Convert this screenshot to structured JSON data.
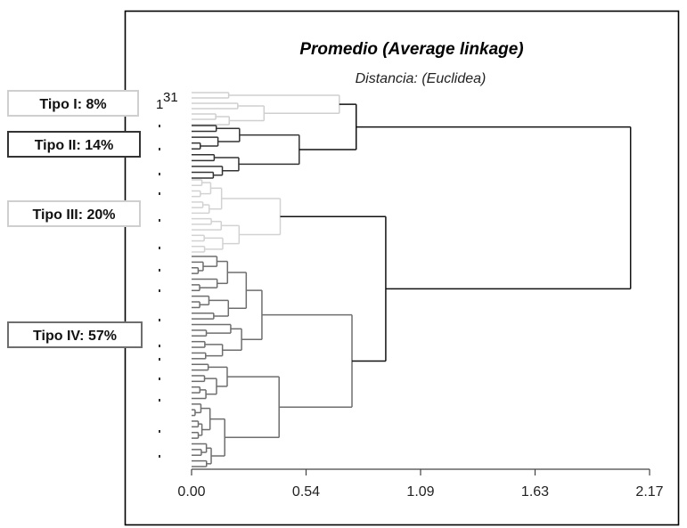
{
  "chart_data": {
    "type": "dendrogram",
    "title": "Promedio (Average linkage)",
    "subtitle": "Distancia: (Euclidea)",
    "xlabel": "",
    "ylabel": "",
    "xlim": [
      0,
      2.17
    ],
    "x_ticks": [
      "0.00",
      "0.54",
      "1.09",
      "1.63",
      "2.17"
    ],
    "x_tick_values": [
      0,
      0.5425,
      1.085,
      1.6275,
      2.17
    ],
    "leaf_marker": "1",
    "leaf_marker_superscript": "31",
    "merges": [
      {
        "cluster": "Tipo I",
        "height": 0.7
      },
      {
        "cluster": "Tipo II",
        "height": 0.51
      },
      {
        "cluster": "Tipo III",
        "height": 0.42
      },
      {
        "cluster": "Tipo IV",
        "height": 0.76
      },
      {
        "join": [
          "Tipo I",
          "Tipo II"
        ],
        "height": 0.78
      },
      {
        "join": [
          "Tipo III",
          "Tipo IV"
        ],
        "height": 0.92
      },
      {
        "join": [
          "Tipos I-II",
          "Tipos III-IV"
        ],
        "height": 2.08
      }
    ],
    "clusters": [
      {
        "name": "Tipo I",
        "label": "Tipo I: 8%",
        "percent": 8,
        "color": "#cfcfcf"
      },
      {
        "name": "Tipo II",
        "label": "Tipo II: 14%",
        "percent": 14,
        "color": "#333333"
      },
      {
        "name": "Tipo III",
        "label": "Tipo III: 20%",
        "percent": 20,
        "color": "#d2d2d2"
      },
      {
        "name": "Tipo IV",
        "label": "Tipo IV: 57%",
        "percent": 57,
        "color": "#6e6e6e"
      }
    ],
    "link_color": "#111111"
  }
}
